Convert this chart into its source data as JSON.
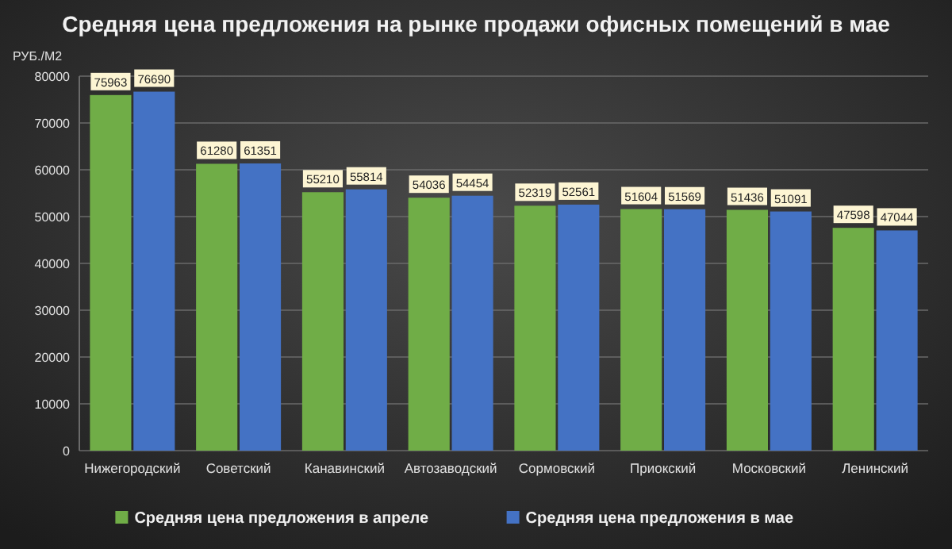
{
  "chart_data": {
    "type": "bar",
    "title": "Средняя цена предложения на рынке продажи офисных помещений в мае",
    "ylabel": "РУБ./М2",
    "categories": [
      "Нижегородский",
      "Советский",
      "Канавинский",
      "Автозаводский",
      "Сормовский",
      "Приокский",
      "Московский",
      "Ленинский"
    ],
    "series": [
      {
        "name": "Средняя цена предложения в апреле",
        "color": "#70ad47",
        "values": [
          75963,
          61280,
          55210,
          54036,
          52319,
          51604,
          51436,
          47598
        ]
      },
      {
        "name": "Средняя цена предложения в мае",
        "color": "#4472c4",
        "values": [
          76690,
          61351,
          55814,
          54454,
          52561,
          51569,
          51091,
          47044
        ]
      }
    ],
    "ylim": [
      0,
      80000
    ],
    "yticks": [
      0,
      10000,
      20000,
      30000,
      40000,
      50000,
      60000,
      70000,
      80000
    ],
    "grid": "y",
    "legend": "bottom",
    "data_labels": true
  }
}
